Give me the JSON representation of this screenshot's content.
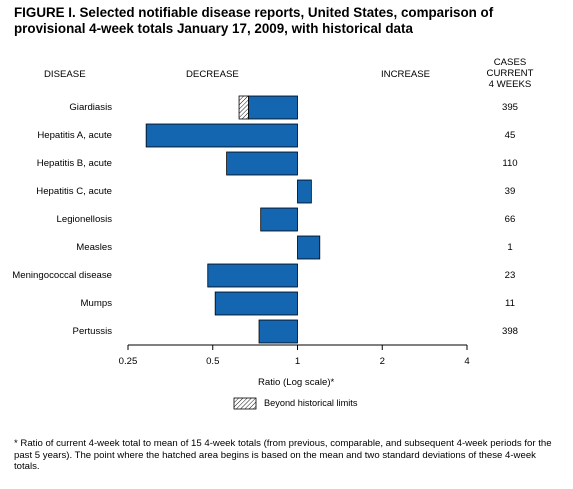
{
  "title": "FIGURE I. Selected notifiable disease reports, United States, comparison of provisional 4-week totals January 17, 2009, with historical data",
  "headers": {
    "disease": "DISEASE",
    "decrease": "DECREASE",
    "increase": "INCREASE",
    "cases": "CASES CURRENT\n4 WEEKS"
  },
  "axis_title": "Ratio (Log scale)*",
  "legend": {
    "label": "Beyond historical limits"
  },
  "footnote": "* Ratio of current 4-week total to mean of 15 4-week totals (from previous, comparable, and subsequent 4-week periods for the past 5 years). The point where the hatched area begins is based on the mean and two standard deviations of these 4-week totals.",
  "colors": {
    "bar": "#1566b0",
    "outline": "#000000"
  },
  "chart_data": {
    "type": "bar",
    "orientation": "horizontal",
    "scale": "log2",
    "xlim": [
      0.25,
      4
    ],
    "xticks": [
      0.25,
      0.5,
      1,
      2,
      4
    ],
    "xticklabels": [
      "0.25",
      "0.5",
      "1",
      "2",
      "4"
    ],
    "baseline": 1,
    "categories": [
      "Giardiasis",
      "Hepatitis A, acute",
      "Hepatitis B, acute",
      "Hepatitis C, acute",
      "Legionellosis",
      "Measles",
      "Meningococcal disease",
      "Mumps",
      "Pertussis"
    ],
    "values": [
      0.62,
      0.29,
      0.56,
      1.12,
      0.74,
      1.2,
      0.48,
      0.51,
      0.73
    ],
    "beyond_historical_limits_from": [
      0.67,
      null,
      null,
      null,
      null,
      null,
      null,
      null,
      null
    ],
    "cases_current_4_weeks": [
      "395",
      "45",
      "110",
      "39",
      "66",
      "1",
      "23",
      "11",
      "398"
    ]
  }
}
